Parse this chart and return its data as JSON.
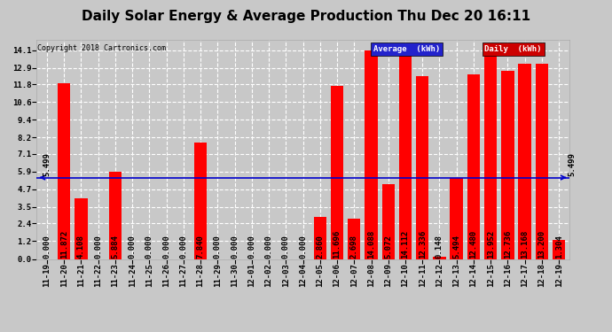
{
  "title": "Daily Solar Energy & Average Production Thu Dec 20 16:11",
  "copyright": "Copyright 2018 Cartronics.com",
  "categories": [
    "11-19",
    "11-20",
    "11-21",
    "11-22",
    "11-23",
    "11-24",
    "11-25",
    "11-26",
    "11-27",
    "11-28",
    "11-29",
    "11-30",
    "12-01",
    "12-02",
    "12-03",
    "12-04",
    "12-05",
    "12-06",
    "12-07",
    "12-08",
    "12-09",
    "12-10",
    "12-11",
    "12-12",
    "12-13",
    "12-14",
    "12-15",
    "12-16",
    "12-17",
    "12-18",
    "12-19"
  ],
  "values": [
    0.0,
    11.872,
    4.108,
    0.0,
    5.884,
    0.0,
    0.0,
    0.0,
    0.0,
    7.84,
    0.0,
    0.0,
    0.0,
    0.0,
    0.0,
    0.0,
    2.86,
    11.696,
    2.698,
    14.088,
    5.072,
    14.112,
    12.336,
    0.148,
    5.494,
    12.48,
    13.952,
    12.736,
    13.168,
    13.2,
    1.304
  ],
  "average": 5.499,
  "bar_color": "#ff0000",
  "average_line_color": "#0000cc",
  "bg_color": "#c8c8c8",
  "plot_bg_color": "#c8c8c8",
  "grid_color": "#ffffff",
  "title_fontsize": 11,
  "label_fontsize": 6.5,
  "tick_fontsize": 6.5,
  "ylim": [
    0.0,
    14.8
  ],
  "yticks": [
    0.0,
    1.2,
    2.4,
    3.5,
    4.7,
    5.9,
    7.1,
    8.2,
    9.4,
    10.6,
    11.8,
    12.9,
    14.1
  ],
  "legend_avg_color": "#2222cc",
  "legend_daily_color": "#cc0000",
  "legend_text_color": "#ffffff"
}
